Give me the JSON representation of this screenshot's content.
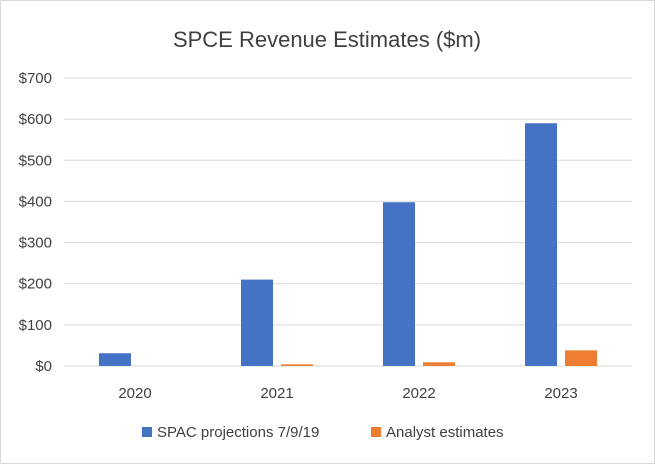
{
  "chart_data": {
    "type": "bar",
    "title": "SPCE Revenue Estimates ($m)",
    "xlabel": "",
    "ylabel": "",
    "categories": [
      "2020",
      "2021",
      "2022",
      "2023"
    ],
    "series": [
      {
        "name": "SPAC projections 7/9/19",
        "color": "#4472c4",
        "values": [
          31,
          210,
          398,
          590
        ]
      },
      {
        "name": "Analyst estimates",
        "color": "#ed7d31",
        "values": [
          0,
          4,
          9,
          38
        ]
      }
    ],
    "ylim": [
      0,
      700
    ],
    "yticks": [
      0,
      100,
      200,
      300,
      400,
      500,
      600,
      700
    ],
    "ytick_labels": [
      "$0",
      "$100",
      "$200",
      "$300",
      "$400",
      "$500",
      "$600",
      "$700"
    ],
    "grid": true,
    "legend_position": "bottom"
  }
}
